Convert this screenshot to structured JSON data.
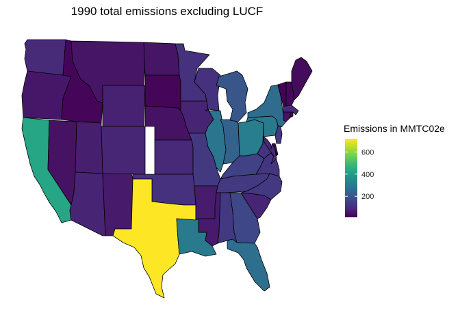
{
  "title": "1990 total emissions excluding LUCF",
  "legend": {
    "title": "Emissions in MMTC02e",
    "ticks": [
      200,
      400,
      600
    ],
    "tick_labels": [
      "200",
      "400",
      "600"
    ],
    "min": 10,
    "max": 720,
    "colors": [
      "#440154",
      "#482878",
      "#3e4989",
      "#31688e",
      "#26828e",
      "#1f9e89",
      "#35b779",
      "#6ece58",
      "#b5de2b",
      "#fde725"
    ]
  },
  "states": [
    {
      "id": "WA",
      "name": "washington",
      "value": 95
    },
    {
      "id": "OR",
      "name": "oregon",
      "value": 55
    },
    {
      "id": "CA",
      "name": "california",
      "value": 430
    },
    {
      "id": "NV",
      "name": "nevada",
      "value": 45
    },
    {
      "id": "ID",
      "name": "idaho",
      "value": 20
    },
    {
      "id": "MT",
      "name": "montana",
      "value": 50
    },
    {
      "id": "WY",
      "name": "wyoming",
      "value": 75
    },
    {
      "id": "UT",
      "name": "utah",
      "value": 70
    },
    {
      "id": "AZ",
      "name": "arizona",
      "value": 80
    },
    {
      "id": "NM",
      "name": "new mexico",
      "value": 60
    },
    {
      "id": "CO",
      "name": "colorado",
      "value": 85
    },
    {
      "id": "ND",
      "name": "north dakota",
      "value": 50
    },
    {
      "id": "SD",
      "name": "south dakota",
      "value": 20
    },
    {
      "id": "NE",
      "name": "nebraska",
      "value": 45
    },
    {
      "id": "KS",
      "name": "kansas",
      "value": 90
    },
    {
      "id": "OK",
      "name": "oklahoma",
      "value": 110
    },
    {
      "id": "TX",
      "name": "texas",
      "value": 720
    },
    {
      "id": "MN",
      "name": "minnesota",
      "value": 110
    },
    {
      "id": "IA",
      "name": "iowa",
      "value": 80
    },
    {
      "id": "MO",
      "name": "missouri",
      "value": 130
    },
    {
      "id": "AR",
      "name": "arkansas",
      "value": 65
    },
    {
      "id": "LA",
      "name": "louisiana",
      "value": 300
    },
    {
      "id": "WI",
      "name": "wisconsin",
      "value": 110
    },
    {
      "id": "IL",
      "name": "illinois",
      "value": 290
    },
    {
      "id": "IN",
      "name": "indiana",
      "value": 235
    },
    {
      "id": "MI",
      "name": "michigan",
      "value": 200
    },
    {
      "id": "OH",
      "name": "ohio",
      "value": 310
    },
    {
      "id": "KY",
      "name": "kentucky",
      "value": 150
    },
    {
      "id": "TN",
      "name": "tennessee",
      "value": 130
    },
    {
      "id": "MS",
      "name": "mississippi",
      "value": 60
    },
    {
      "id": "AL",
      "name": "alabama",
      "value": 130
    },
    {
      "id": "GA",
      "name": "georgia",
      "value": 165
    },
    {
      "id": "FL",
      "name": "florida",
      "value": 265
    },
    {
      "id": "SC",
      "name": "south carolina",
      "value": 80
    },
    {
      "id": "NC",
      "name": "north carolina",
      "value": 130
    },
    {
      "id": "VA",
      "name": "virginia",
      "value": 120
    },
    {
      "id": "WV",
      "name": "west virginia",
      "value": 115
    },
    {
      "id": "PA",
      "name": "pennsylvania",
      "value": 300
    },
    {
      "id": "NY",
      "name": "new york",
      "value": 260
    },
    {
      "id": "VT",
      "name": "vermont",
      "value": 15
    },
    {
      "id": "NH",
      "name": "new hampshire",
      "value": 25
    },
    {
      "id": "ME",
      "name": "maine",
      "value": 30
    },
    {
      "id": "MA",
      "name": "massachusetts",
      "value": 95
    },
    {
      "id": "RI",
      "name": "rhode island",
      "value": 15
    },
    {
      "id": "CT",
      "name": "connecticut",
      "value": 45
    },
    {
      "id": "NJ",
      "name": "new jersey",
      "value": 130
    },
    {
      "id": "DE",
      "name": "delaware",
      "value": 20
    },
    {
      "id": "MD",
      "name": "maryland",
      "value": 95
    }
  ]
}
